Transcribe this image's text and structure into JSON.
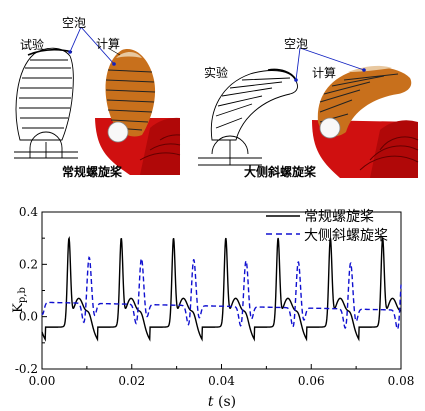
{
  "panels": {
    "left": {
      "experiment_label": "试验",
      "cavitation_label": "空泡",
      "computation_label": "计算",
      "caption": "常规螺旋桨"
    },
    "right": {
      "experiment_label": "实验",
      "cavitation_label": "空泡",
      "computation_label": "计算",
      "caption": "大侧斜螺旋桨"
    }
  },
  "colors": {
    "blade_orange": "#c8701c",
    "blade_red": "#d01010",
    "cavity_blue": "#2030c0",
    "series_conventional": "#000000",
    "series_skew": "#1010d0"
  },
  "chart_data": {
    "type": "line",
    "xlabel": "t (s)",
    "ylabel": "Kp,b",
    "xlim": [
      0.0,
      0.08
    ],
    "ylim": [
      -0.2,
      0.4
    ],
    "xticks": [
      "0.00",
      "0.02",
      "0.04",
      "0.06",
      "0.08"
    ],
    "yticks": [
      "-0.2",
      "0.0",
      "0.2",
      "0.4"
    ],
    "grid": false,
    "legend_position": "top-right",
    "period": 0.01165,
    "series": [
      {
        "name": "常规螺旋桨",
        "style": "solid",
        "phase0": 0.006,
        "description_points": [
          [
            0.0,
            -0.05
          ],
          [
            0.004,
            -0.01
          ],
          [
            0.006,
            0.28
          ],
          [
            0.0075,
            0.06
          ],
          [
            0.009,
            0.07
          ],
          [
            0.0105,
            0.07
          ],
          [
            0.012,
            0.0
          ],
          [
            0.0135,
            -0.06
          ]
        ]
      },
      {
        "name": "大侧斜螺旋桨",
        "style": "dashed",
        "phase0": 0.0105,
        "description_points": [
          [
            0.0,
            0.05
          ],
          [
            0.006,
            0.03
          ],
          [
            0.0085,
            0.035
          ],
          [
            0.0095,
            -0.02
          ],
          [
            0.0105,
            0.19
          ],
          [
            0.0115,
            0.03
          ],
          [
            0.013,
            0.05
          ]
        ]
      }
    ]
  }
}
